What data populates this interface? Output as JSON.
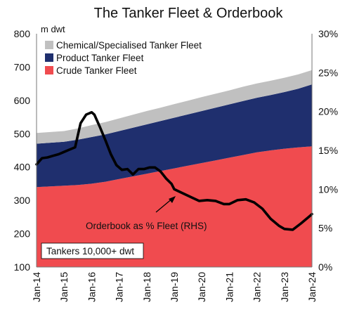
{
  "chart_data": {
    "type": "area",
    "title": "The Tanker Fleet & Orderbook",
    "left_unit_label": "m dwt",
    "x_ticks": [
      "Jan-14",
      "Jan-15",
      "Jan-16",
      "Jan-17",
      "Jan-18",
      "Jan-19",
      "Jan-20",
      "Jan-21",
      "Jan-22",
      "Jan-23",
      "Jan-24"
    ],
    "y_left": {
      "min": 100,
      "max": 800,
      "ticks": [
        "100",
        "200",
        "300",
        "400",
        "500",
        "600",
        "700",
        "800"
      ]
    },
    "y_right": {
      "min": 0,
      "max": 30,
      "ticks": [
        "0%",
        "5%",
        "10%",
        "15%",
        "20%",
        "25%",
        "30%"
      ]
    },
    "grid": false,
    "legend_position": "top-left",
    "legend": [
      {
        "name": "Chemical/Specialised Tanker Fleet",
        "color": "#c0c0c0"
      },
      {
        "name": "Product Tanker Fleet",
        "color": "#1f2f6e"
      },
      {
        "name": "Crude Tanker Fleet",
        "color": "#f04b4f"
      }
    ],
    "stack_years": [
      2014.0,
      2014.5,
      2015.0,
      2015.5,
      2016.0,
      2016.5,
      2017.0,
      2017.5,
      2018.0,
      2018.5,
      2019.0,
      2019.5,
      2020.0,
      2020.5,
      2021.0,
      2021.5,
      2022.0,
      2022.5,
      2023.0,
      2023.5,
      2024.0
    ],
    "series": [
      {
        "name": "Crude Tanker Fleet",
        "axis": "left",
        "color": "#f04b4f",
        "values": [
          340,
          342,
          344,
          346,
          350,
          356,
          364,
          372,
          380,
          388,
          396,
          404,
          412,
          420,
          428,
          436,
          444,
          450,
          455,
          459,
          462
        ]
      },
      {
        "name": "Product Tanker Fleet",
        "axis": "left",
        "color": "#1f2f6e",
        "values": [
          130,
          131,
          132,
          136,
          140,
          142,
          144,
          146,
          148,
          150,
          152,
          154,
          156,
          158,
          160,
          162,
          164,
          166,
          170,
          176,
          186
        ]
      },
      {
        "name": "Chemical/Specialised Tanker Fleet",
        "axis": "left",
        "color": "#c0c0c0",
        "values": [
          32,
          32,
          32,
          34,
          36,
          37,
          38,
          39,
          40,
          40,
          41,
          41,
          42,
          42,
          42,
          43,
          43,
          43,
          43,
          43,
          43
        ]
      },
      {
        "name": "Orderbook as % Fleet (RHS)",
        "axis": "right",
        "color": "#000000",
        "x": [
          2014.0,
          2014.2,
          2014.4,
          2014.6,
          2014.8,
          2015.0,
          2015.2,
          2015.4,
          2015.6,
          2015.8,
          2016.0,
          2016.1,
          2016.3,
          2016.5,
          2016.7,
          2016.9,
          2017.1,
          2017.3,
          2017.5,
          2017.7,
          2017.9,
          2018.1,
          2018.3,
          2018.5,
          2018.7,
          2018.9,
          2019.0,
          2019.3,
          2019.6,
          2019.9,
          2020.2,
          2020.5,
          2020.8,
          2021.0,
          2021.3,
          2021.6,
          2021.9,
          2022.2,
          2022.5,
          2022.8,
          2023.0,
          2023.3,
          2023.6,
          2023.9,
          2024.0
        ],
        "values": [
          13.2,
          14.0,
          14.1,
          14.3,
          14.5,
          14.8,
          15.1,
          15.4,
          18.5,
          19.6,
          19.9,
          19.6,
          18.0,
          16.3,
          14.5,
          13.1,
          12.5,
          12.6,
          11.9,
          12.6,
          12.6,
          12.8,
          12.8,
          12.3,
          11.4,
          10.7,
          10.0,
          9.5,
          9.0,
          8.5,
          8.6,
          8.5,
          8.1,
          8.1,
          8.6,
          8.7,
          8.3,
          7.5,
          6.2,
          5.3,
          4.9,
          4.8,
          5.6,
          6.5,
          6.8
        ]
      }
    ],
    "annotation": "Orderbook as % Fleet (RHS)",
    "note": "Tankers 10,000+ dwt"
  }
}
